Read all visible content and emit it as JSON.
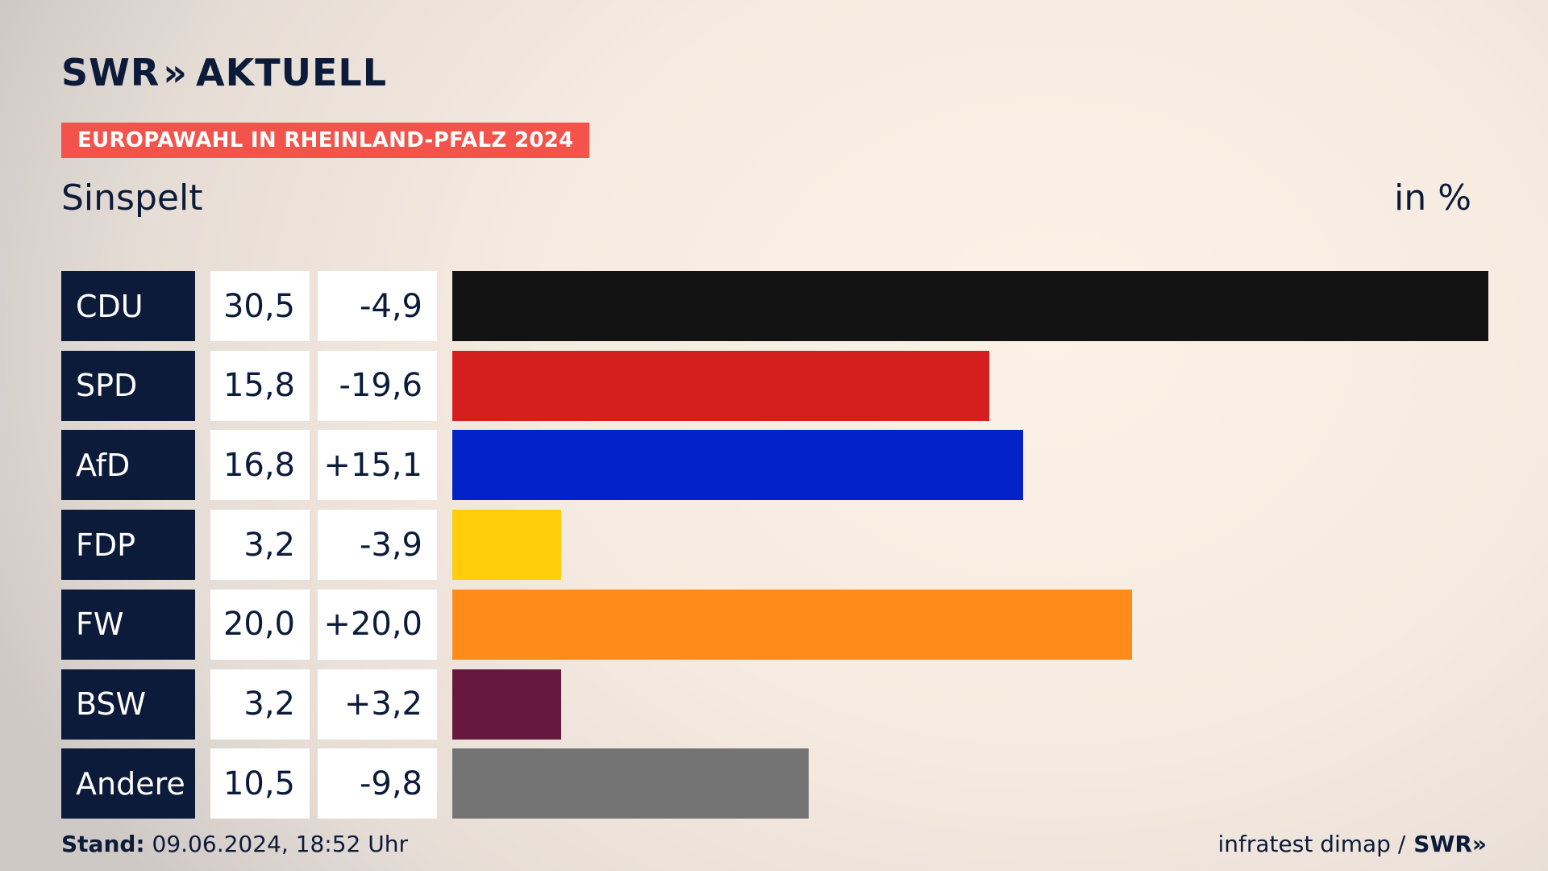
{
  "header": {
    "logo_left": "SWR",
    "logo_chevrons": "»",
    "logo_right": "AKTUELL",
    "badge": "EUROPAWAHL IN RHEINLAND-PFALZ 2024",
    "subtitle": "Sinspelt",
    "unit": "in %"
  },
  "chart_data": {
    "type": "bar",
    "orientation": "horizontal",
    "categories": [
      "CDU",
      "SPD",
      "AfD",
      "FDP",
      "FW",
      "BSW",
      "Andere"
    ],
    "values": [
      30.5,
      15.8,
      16.8,
      3.2,
      20.0,
      3.2,
      10.5
    ],
    "value_labels": [
      "30,5",
      "15,8",
      "16,8",
      "3,2",
      "20,0",
      "3,2",
      "10,5"
    ],
    "diff_labels": [
      "-4,9",
      "-19,6",
      "+15,1",
      "-3,9",
      "+20,0",
      "+3,2",
      "-9,8"
    ],
    "colors": [
      "#131313",
      "#d51f1f",
      "#0322c9",
      "#ffcd0a",
      "#ff8c18",
      "#66183e",
      "#747474"
    ],
    "xlim": [
      0,
      30.5
    ],
    "grid": false
  },
  "footer": {
    "stand_label": "Stand:",
    "stand_value": "09.06.2024, 18:52 Uhr",
    "source": "infratest dimap /",
    "source_logo": "SWR»"
  }
}
